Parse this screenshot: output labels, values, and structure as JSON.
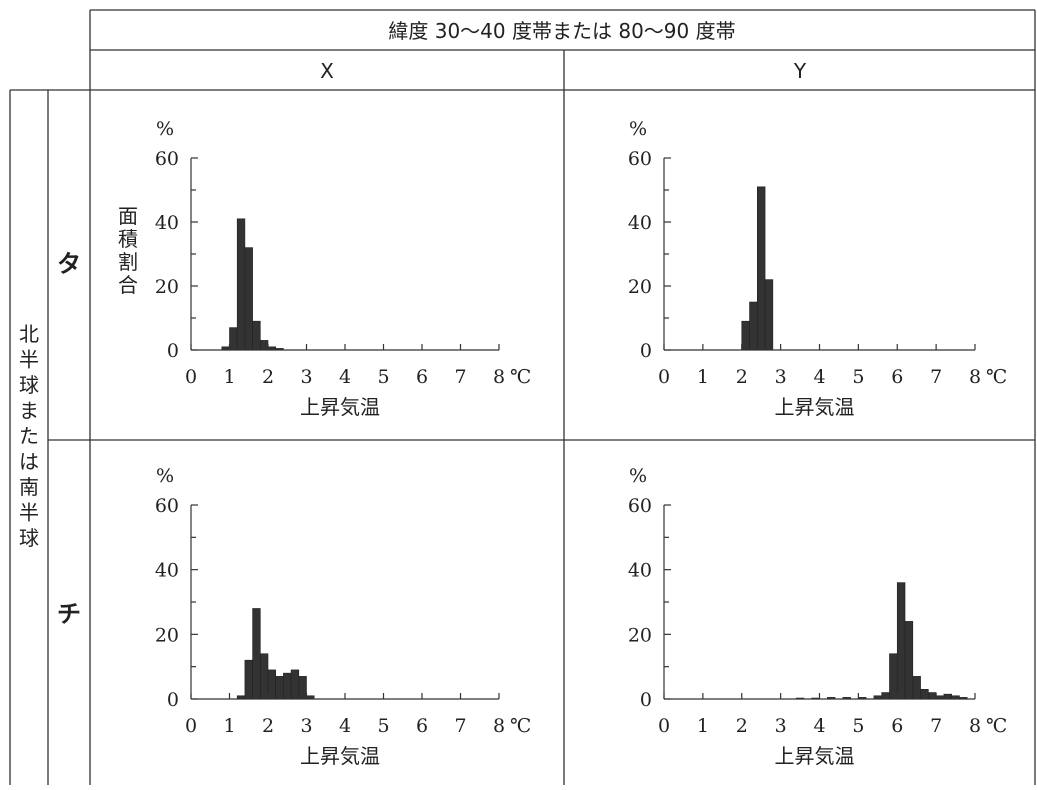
{
  "header": {
    "title": "緯度 30～40 度帯または 80～90 度帯",
    "col_x": "X",
    "col_y": "Y"
  },
  "rows": {
    "side_label": "北半球または南半球",
    "row_ta": "タ",
    "row_chi": "チ"
  },
  "axis_text": {
    "percent_unit": "%",
    "ylabel": "面積割合",
    "xlabel": "上昇気温",
    "x_unit": "℃"
  },
  "chart_data": [
    {
      "type": "bar",
      "panel": "タ-X",
      "bin_width": 0.2,
      "bin_starts": [
        0.8,
        1.0,
        1.2,
        1.4,
        1.6,
        1.8,
        2.0,
        2.2
      ],
      "values": [
        1,
        7,
        41,
        32,
        9,
        3,
        1,
        0.5
      ],
      "xlim": [
        0,
        8
      ],
      "ylim": [
        0,
        60
      ],
      "xticks": [
        0,
        1,
        2,
        3,
        4,
        5,
        6,
        7,
        8
      ],
      "yticks": [
        0,
        20,
        40,
        60
      ],
      "xlabel": "上昇気温",
      "ylabel": "面積割合"
    },
    {
      "type": "bar",
      "panel": "タ-Y",
      "bin_width": 0.2,
      "bin_starts": [
        2.0,
        2.2,
        2.4,
        2.6
      ],
      "values": [
        9,
        15,
        51,
        22
      ],
      "xlim": [
        0,
        8
      ],
      "ylim": [
        0,
        60
      ],
      "xticks": [
        0,
        1,
        2,
        3,
        4,
        5,
        6,
        7,
        8
      ],
      "yticks": [
        0,
        20,
        40,
        60
      ],
      "xlabel": "上昇気温"
    },
    {
      "type": "bar",
      "panel": "チ-X",
      "bin_width": 0.2,
      "bin_starts": [
        1.2,
        1.4,
        1.6,
        1.8,
        2.0,
        2.2,
        2.4,
        2.6,
        2.8,
        3.0
      ],
      "values": [
        1,
        12,
        28,
        14,
        9,
        7,
        8,
        9,
        7,
        1
      ],
      "xlim": [
        0,
        8
      ],
      "ylim": [
        0,
        60
      ],
      "xticks": [
        0,
        1,
        2,
        3,
        4,
        5,
        6,
        7,
        8
      ],
      "yticks": [
        0,
        20,
        40,
        60
      ],
      "xlabel": "上昇気温"
    },
    {
      "type": "bar",
      "panel": "チ-Y",
      "bin_width": 0.2,
      "bin_starts": [
        3.4,
        3.8,
        4.2,
        4.6,
        5.0,
        5.4,
        5.6,
        5.8,
        6.0,
        6.2,
        6.4,
        6.6,
        6.8,
        7.0,
        7.2,
        7.4,
        7.6
      ],
      "values": [
        0.3,
        0.3,
        0.5,
        0.5,
        0.5,
        1,
        2,
        14,
        36,
        24,
        7,
        3,
        2,
        1,
        1.5,
        1,
        0.5
      ],
      "xlim": [
        0,
        8
      ],
      "ylim": [
        0,
        60
      ],
      "xticks": [
        0,
        1,
        2,
        3,
        4,
        5,
        6,
        7,
        8
      ],
      "yticks": [
        0,
        20,
        40,
        60
      ],
      "xlabel": "上昇気温"
    }
  ]
}
